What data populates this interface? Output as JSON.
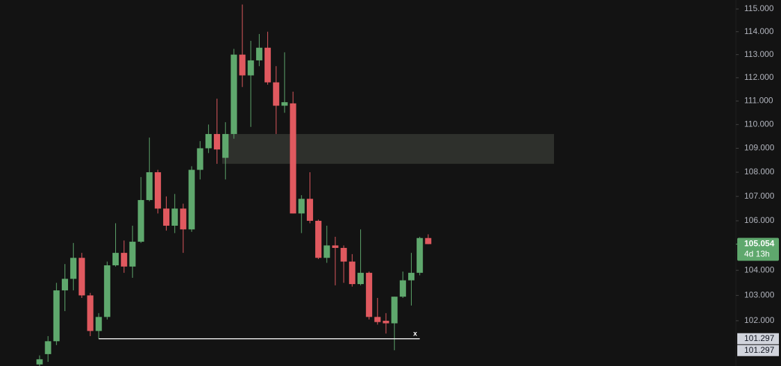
{
  "chart_data": {
    "type": "candlestick",
    "log_scale": true,
    "up_color": "#5fa86d",
    "down_color": "#e0595f",
    "ylim": [
      100.24,
      115.4
    ],
    "yticks": [
      {
        "value": 102,
        "label": "102.000"
      },
      {
        "value": 103,
        "label": "103.000"
      },
      {
        "value": 104,
        "label": "104.000"
      },
      {
        "value": 106,
        "label": "106.000"
      },
      {
        "value": 107,
        "label": "107.000"
      },
      {
        "value": 108,
        "label": "108.000"
      },
      {
        "value": 109,
        "label": "109.000"
      },
      {
        "value": 110,
        "label": "110.000"
      },
      {
        "value": 111,
        "label": "111.000"
      },
      {
        "value": 112,
        "label": "112.000"
      },
      {
        "value": 113,
        "label": "113.000"
      },
      {
        "value": 114,
        "label": "114.000"
      },
      {
        "value": 115,
        "label": "115.000"
      }
    ],
    "open": [
      100.3,
      100.7,
      101.2,
      103.2,
      103.66,
      104.5,
      103.0,
      101.6,
      102.15,
      104.2,
      104.7,
      104.15,
      105.15,
      106.85,
      108.0,
      106.5,
      105.8,
      106.5,
      105.65,
      108.1,
      109.0,
      109.6,
      108.6,
      109.6,
      113.0,
      112.1,
      112.75,
      113.3,
      111.8,
      110.8,
      110.9,
      106.3,
      106.9,
      106.0,
      104.5,
      105.0,
      104.9,
      104.35,
      103.45,
      103.9,
      102.15,
      102.0,
      101.9,
      102.95,
      103.6,
      103.9,
      105.3
    ],
    "high": [
      100.65,
      101.4,
      103.5,
      104.25,
      105.1,
      104.7,
      103.1,
      102.3,
      104.35,
      105.9,
      105.2,
      105.8,
      107.8,
      109.45,
      108.1,
      107.0,
      107.1,
      106.7,
      108.25,
      109.3,
      110.0,
      111.1,
      110.1,
      113.25,
      115.2,
      113.6,
      113.9,
      114.0,
      112.5,
      113.1,
      111.4,
      107.05,
      108.0,
      106.05,
      105.8,
      105.35,
      105.0,
      104.65,
      105.65,
      103.95,
      102.9,
      102.3,
      102.95,
      103.95,
      104.7,
      105.35,
      105.45
    ],
    "low": [
      100.24,
      100.4,
      101.05,
      102.38,
      103.2,
      102.9,
      101.4,
      101.3,
      102.05,
      104.15,
      103.9,
      103.7,
      105.1,
      106.8,
      106.3,
      105.6,
      105.5,
      104.7,
      105.55,
      107.7,
      108.8,
      108.35,
      107.7,
      109.4,
      111.6,
      109.9,
      112.5,
      111.7,
      109.6,
      110.5,
      106.3,
      105.5,
      105.9,
      104.45,
      104.3,
      103.4,
      103.5,
      103.35,
      103.4,
      102.05,
      101.85,
      101.5,
      100.85,
      102.9,
      102.6,
      103.8,
      105.05
    ],
    "close": [
      100.5,
      101.2,
      103.2,
      103.66,
      104.5,
      103.0,
      101.6,
      102.15,
      104.2,
      104.7,
      104.15,
      105.15,
      106.85,
      108.0,
      106.5,
      105.8,
      106.5,
      105.65,
      108.1,
      109.0,
      109.6,
      108.95,
      109.6,
      113.0,
      112.1,
      112.75,
      113.3,
      111.8,
      110.8,
      110.95,
      106.3,
      106.9,
      106.0,
      104.5,
      105.0,
      104.9,
      104.35,
      103.45,
      103.9,
      102.15,
      101.95,
      101.9,
      102.95,
      103.6,
      103.9,
      105.3,
      105.054
    ],
    "zone": [
      108.35,
      109.6
    ],
    "current_price": 105.054,
    "countdown": "4d 13h",
    "price_labels": [
      101.297,
      101.297
    ],
    "marker": "x"
  }
}
